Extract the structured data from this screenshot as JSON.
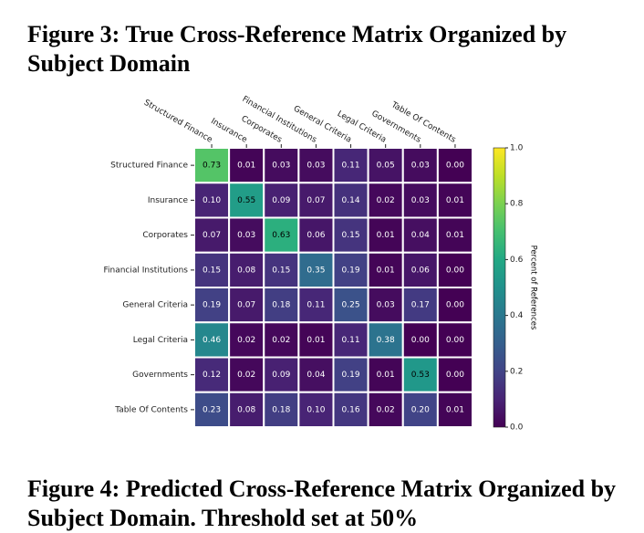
{
  "figure_title": "Figure 3: True Cross-Reference Matrix Organized by Subject Domain",
  "chart_data": {
    "type": "heatmap",
    "x_categories": [
      "Structured Finance",
      "Insurance",
      "Corporates",
      "Financial Institutions",
      "General Criteria",
      "Legal Criteria",
      "Governments",
      "Table Of Contents"
    ],
    "y_categories": [
      "Structured Finance",
      "Insurance",
      "Corporates",
      "Financial Institutions",
      "General Criteria",
      "Legal Criteria",
      "Governments",
      "Table Of Contents"
    ],
    "values": [
      [
        0.73,
        0.01,
        0.03,
        0.03,
        0.11,
        0.05,
        0.03,
        0.0
      ],
      [
        0.1,
        0.55,
        0.09,
        0.07,
        0.14,
        0.02,
        0.03,
        0.01
      ],
      [
        0.07,
        0.03,
        0.63,
        0.06,
        0.15,
        0.01,
        0.04,
        0.01
      ],
      [
        0.15,
        0.08,
        0.15,
        0.35,
        0.19,
        0.01,
        0.06,
        0.0
      ],
      [
        0.19,
        0.07,
        0.18,
        0.11,
        0.25,
        0.03,
        0.17,
        0.0
      ],
      [
        0.46,
        0.02,
        0.02,
        0.01,
        0.11,
        0.38,
        0.0,
        0.0
      ],
      [
        0.12,
        0.02,
        0.09,
        0.04,
        0.19,
        0.01,
        0.53,
        0.0
      ],
      [
        0.23,
        0.08,
        0.18,
        0.1,
        0.16,
        0.02,
        0.2,
        0.01
      ]
    ],
    "value_labels": [
      [
        "0.73",
        "0.01",
        "0.03",
        "0.03",
        "0.11",
        "0.05",
        "0.03",
        "0.00"
      ],
      [
        "0.10",
        "0.55",
        "0.09",
        "0.07",
        "0.14",
        "0.02",
        "0.03",
        "0.01"
      ],
      [
        "0.07",
        "0.03",
        "0.63",
        "0.06",
        "0.15",
        "0.01",
        "0.04",
        "0.01"
      ],
      [
        "0.15",
        "0.08",
        "0.15",
        "0.35",
        "0.19",
        "0.01",
        "0.06",
        "0.00"
      ],
      [
        "0.19",
        "0.07",
        "0.18",
        "0.11",
        "0.25",
        "0.03",
        "0.17",
        "0.00"
      ],
      [
        "0.46",
        "0.02",
        "0.02",
        "0.01",
        "0.11",
        "0.38",
        "0.00",
        "0.00"
      ],
      [
        "0.12",
        "0.02",
        "0.09",
        "0.04",
        "0.19",
        "0.01",
        "0.53",
        "0.00"
      ],
      [
        "0.23",
        "0.08",
        "0.18",
        "0.10",
        "0.16",
        "0.02",
        "0.20",
        "0.01"
      ]
    ],
    "colormap": "viridis",
    "colorbar_label": "Percent of References",
    "zlim": [
      0,
      1
    ],
    "zticks": [
      {
        "value": 0,
        "label": "0.0"
      },
      0.2,
      0.4,
      0.6,
      0.8,
      {
        "value": 1,
        "label": "1.0"
      }
    ]
  },
  "next_figure_title": "Figure 4: Predicted Cross-Reference Matrix Organized by Subject Domain. Threshold set at 50%"
}
